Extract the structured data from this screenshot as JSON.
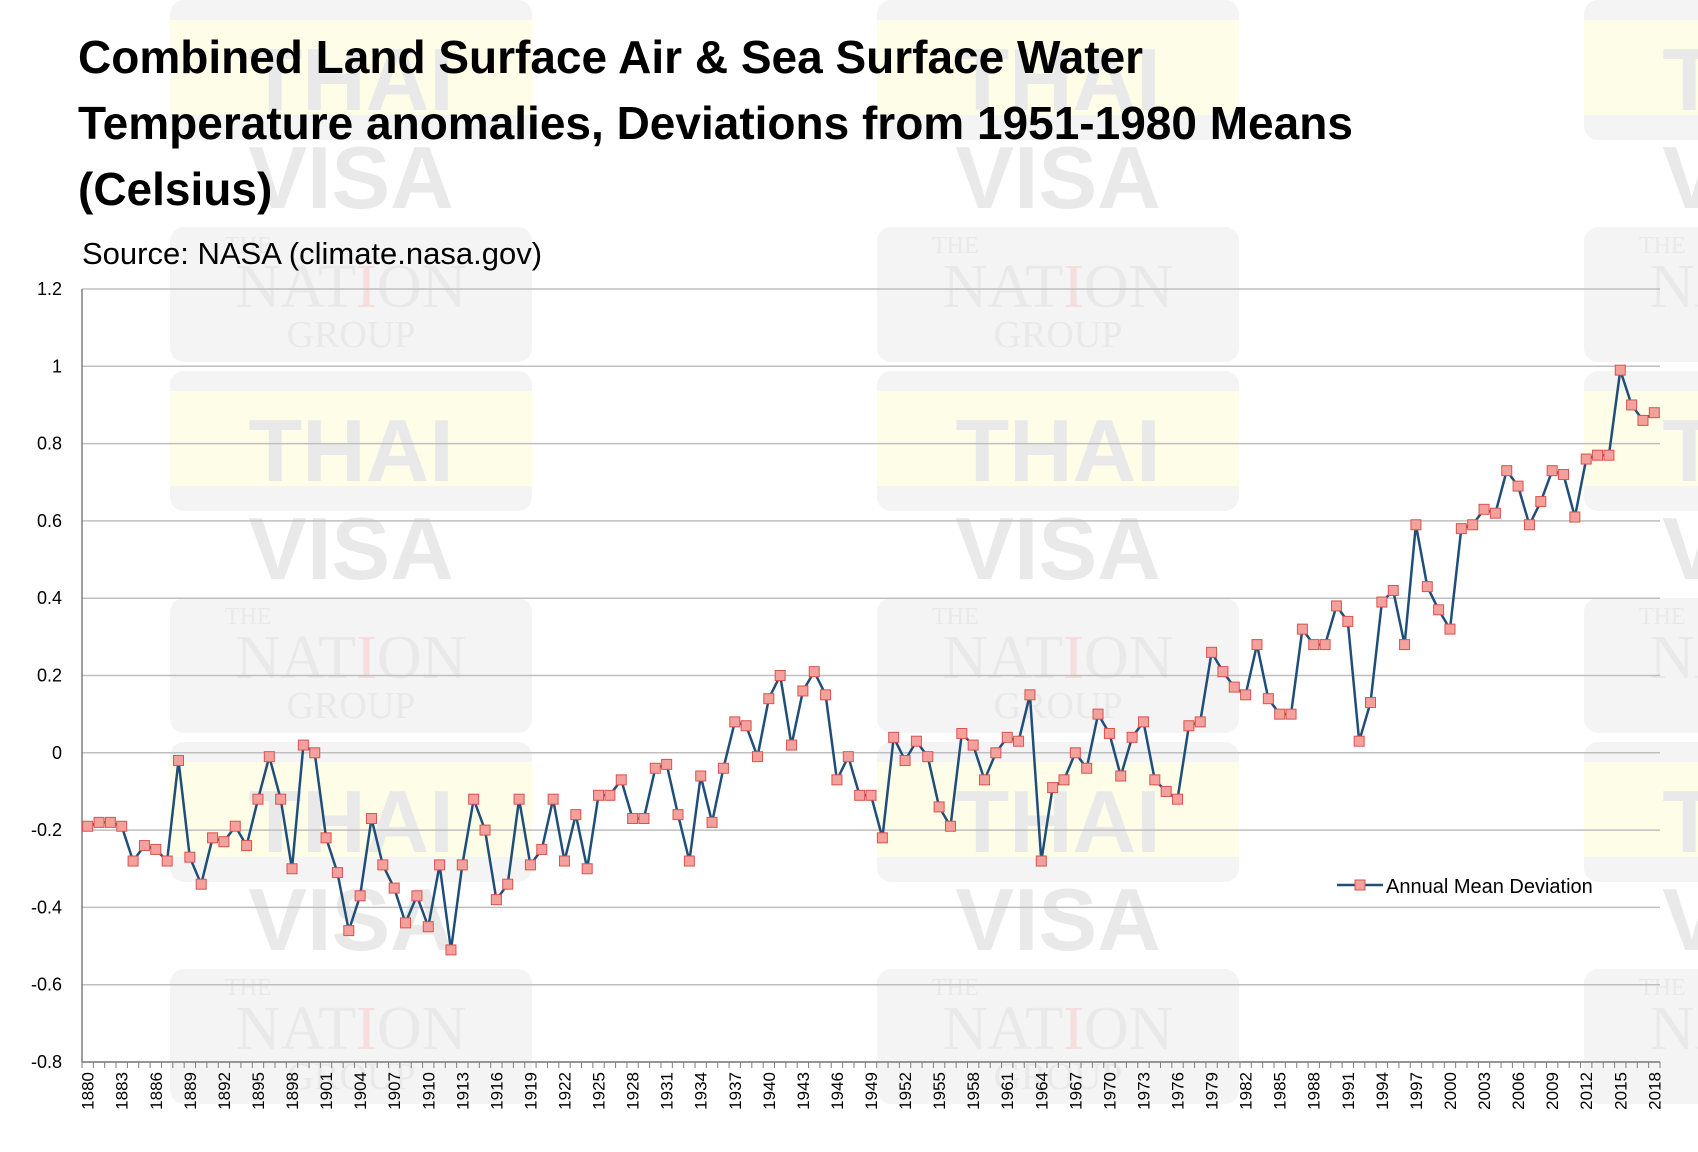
{
  "chart_data": {
    "type": "line",
    "title_lines": [
      "Combined Land Surface Air & Sea Surface Water",
      "Temperature anomalies, Deviations from 1951-1980 Means",
      "(Celsius)"
    ],
    "subtitle": "Source: NASA (climate.nasa.gov)",
    "xlabel": "",
    "ylabel": "",
    "ylim": [
      -0.8,
      1.2
    ],
    "yticks": [
      1.2,
      1,
      0.8,
      0.6,
      0.4,
      0.2,
      0,
      -0.2,
      -0.4,
      -0.6,
      -0.8
    ],
    "ytick_labels": [
      "1.2",
      "1",
      "0.8",
      "0.6",
      "0.4",
      "0.2",
      "0",
      "-0.2",
      "-0.4",
      "-0.6",
      "-0.8"
    ],
    "x_start": 1880,
    "x_end": 2018,
    "xtick_labels": [
      "1880",
      "1883",
      "1886",
      "1889",
      "1892",
      "1895",
      "1898",
      "1901",
      "1904",
      "1907",
      "1910",
      "1913",
      "1916",
      "1919",
      "1922",
      "1925",
      "1928",
      "1931",
      "1934",
      "1937",
      "1940",
      "1943",
      "1946",
      "1949",
      "1952",
      "1955",
      "1958",
      "1961",
      "1964",
      "1967",
      "1970",
      "1973",
      "1976",
      "1979",
      "1982",
      "1985",
      "1988",
      "1991",
      "1994",
      "1997",
      "2000",
      "2003",
      "2006",
      "2009",
      "2012",
      "2015",
      "2018"
    ],
    "grid": true,
    "legend_position": "right",
    "series": [
      {
        "name": "Annual Mean Deviation",
        "line_color": "#1f4e79",
        "marker_color": "#f4a09c",
        "marker_edge": "#d9534f",
        "values": [
          -0.19,
          -0.18,
          -0.18,
          -0.19,
          -0.28,
          -0.24,
          -0.25,
          -0.28,
          -0.02,
          -0.27,
          -0.34,
          -0.22,
          -0.23,
          -0.19,
          -0.24,
          -0.12,
          -0.01,
          -0.12,
          -0.3,
          0.02,
          0.0,
          -0.22,
          -0.31,
          -0.46,
          -0.37,
          -0.17,
          -0.29,
          -0.35,
          -0.44,
          -0.37,
          -0.45,
          -0.29,
          -0.51,
          -0.29,
          -0.12,
          -0.2,
          -0.38,
          -0.34,
          -0.12,
          -0.29,
          -0.25,
          -0.12,
          -0.28,
          -0.16,
          -0.3,
          -0.11,
          -0.11,
          -0.07,
          -0.17,
          -0.17,
          -0.04,
          -0.03,
          -0.16,
          -0.28,
          -0.06,
          -0.18,
          -0.04,
          0.08,
          0.07,
          -0.01,
          0.14,
          0.2,
          0.02,
          0.16,
          0.21,
          0.15,
          -0.07,
          -0.01,
          -0.11,
          -0.11,
          -0.22,
          0.04,
          -0.02,
          0.03,
          -0.01,
          -0.14,
          -0.19,
          0.05,
          0.02,
          -0.07,
          0.0,
          0.04,
          0.03,
          0.15,
          -0.28,
          -0.09,
          -0.07,
          0.0,
          -0.04,
          0.1,
          0.05,
          -0.06,
          0.04,
          0.08,
          -0.07,
          -0.1,
          -0.12,
          0.07,
          0.08,
          0.26,
          0.21,
          0.17,
          0.15,
          0.28,
          0.14,
          0.1,
          0.1,
          0.32,
          0.28,
          0.28,
          0.38,
          0.34,
          0.03,
          0.13,
          0.39,
          0.42,
          0.28,
          0.59,
          0.43,
          0.37,
          0.32,
          0.58,
          0.59,
          0.63,
          0.62,
          0.73,
          0.69,
          0.59,
          0.65,
          0.73,
          0.72,
          0.61,
          0.76,
          0.77,
          0.77,
          0.99,
          0.9,
          0.86,
          0.88
        ]
      }
    ]
  },
  "watermark": {
    "thai": "THAI",
    "visa": "VISA",
    "the": "THE",
    "nation_left": "NAT",
    "nation_i": "I",
    "nation_right": "ON",
    "group": "GROUP"
  },
  "colors": {
    "grid": "#bfbfbf",
    "axis": "#7f7f7f",
    "watermark_box": "#f4f4f4",
    "watermark_yellow": "#fdfde8",
    "watermark_text": "#e9e9e9",
    "watermark_red": "#f6dede"
  }
}
